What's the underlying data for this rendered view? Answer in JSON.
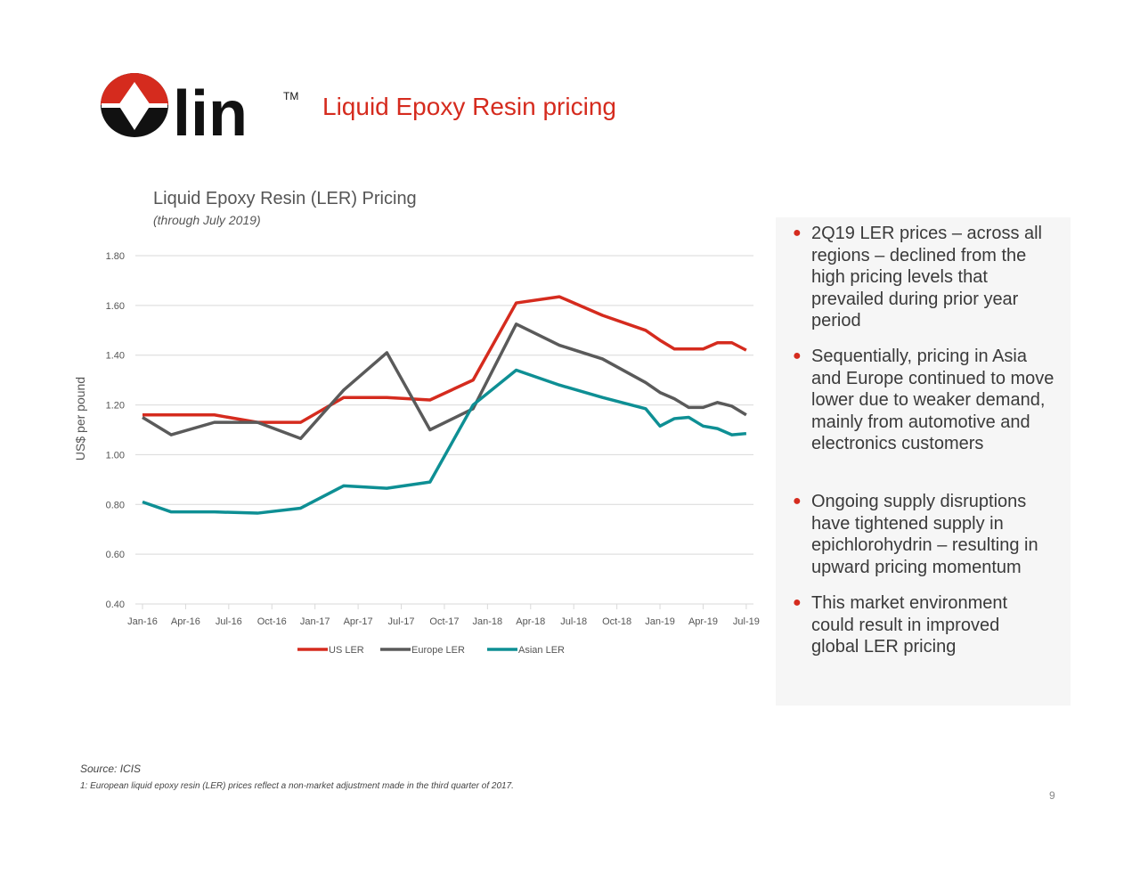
{
  "header": {
    "logo_text": "olin",
    "trademark": "TM",
    "slide_title": "Liquid Epoxy Resin pricing"
  },
  "colors": {
    "brand_red": "#d52b1e",
    "us": "#d52b1e",
    "europe": "#5a5a5a",
    "asian": "#0e8f94"
  },
  "chart_data": {
    "type": "line",
    "title": "Liquid Epoxy Resin (LER) Pricing",
    "subtitle": "(through July 2019)",
    "xlabel": "",
    "ylabel": "US$ per pound",
    "ylim": [
      0.4,
      1.8
    ],
    "yticks": [
      "0.40",
      "0.60",
      "0.80",
      "1.00",
      "1.20",
      "1.40",
      "1.60",
      "1.80"
    ],
    "xticks": [
      "Jan-16",
      "Apr-16",
      "Jul-16",
      "Oct-16",
      "Jan-17",
      "Apr-17",
      "Jul-17",
      "Oct-17",
      "Jan-18",
      "Apr-18",
      "Jul-18",
      "Oct-18",
      "Jan-19",
      "Apr-19",
      "Jul-19"
    ],
    "grid": true,
    "legend": "bottom",
    "x": [
      "Jan-16",
      "Mar-16",
      "Jun-16",
      "Sep-16",
      "Dec-16",
      "Mar-17",
      "Jun-17",
      "Sep-17",
      "Dec-17",
      "Mar-18",
      "Jun-18",
      "Sep-18",
      "Dec-18",
      "Jan-19",
      "Feb-19",
      "Mar-19",
      "Apr-19",
      "May-19",
      "Jun-19",
      "Jul-19"
    ],
    "series": [
      {
        "name": "US LER",
        "color": "#d52b1e",
        "values": [
          1.16,
          1.16,
          1.16,
          1.13,
          1.13,
          1.23,
          1.23,
          1.22,
          1.3,
          1.61,
          1.635,
          1.56,
          1.5,
          1.46,
          1.425,
          1.425,
          1.425,
          1.45,
          1.45,
          1.42
        ]
      },
      {
        "name": "Europe LER",
        "color": "#5a5a5a",
        "values": [
          1.15,
          1.08,
          1.13,
          1.13,
          1.065,
          1.26,
          1.41,
          1.1,
          1.185,
          1.525,
          1.44,
          1.385,
          1.29,
          1.25,
          1.225,
          1.19,
          1.19,
          1.21,
          1.195,
          1.16
        ]
      },
      {
        "name": "Asian LER",
        "color": "#0e8f94",
        "values": [
          0.81,
          0.77,
          0.77,
          0.765,
          0.785,
          0.875,
          0.865,
          0.89,
          1.2,
          1.34,
          1.28,
          1.23,
          1.185,
          1.115,
          1.145,
          1.15,
          1.115,
          1.105,
          1.08,
          1.085
        ]
      }
    ]
  },
  "bullets": [
    "2Q19 LER prices – across all regions –  declined from the high pricing levels that prevailed during prior year period",
    "Sequentially, pricing in Asia and Europe continued to move lower due to weaker demand, mainly from automotive and electronics customers",
    "Ongoing supply disruptions have tightened supply in epichlorohydrin – resulting in upward pricing momentum",
    "This market environment could result in improved global LER pricing"
  ],
  "footer": {
    "source": "Source: ICIS",
    "footnote": "1: European liquid epoxy resin (LER) prices reflect a non-market adjustment made in the third quarter of 2017.",
    "page_number": "9"
  }
}
